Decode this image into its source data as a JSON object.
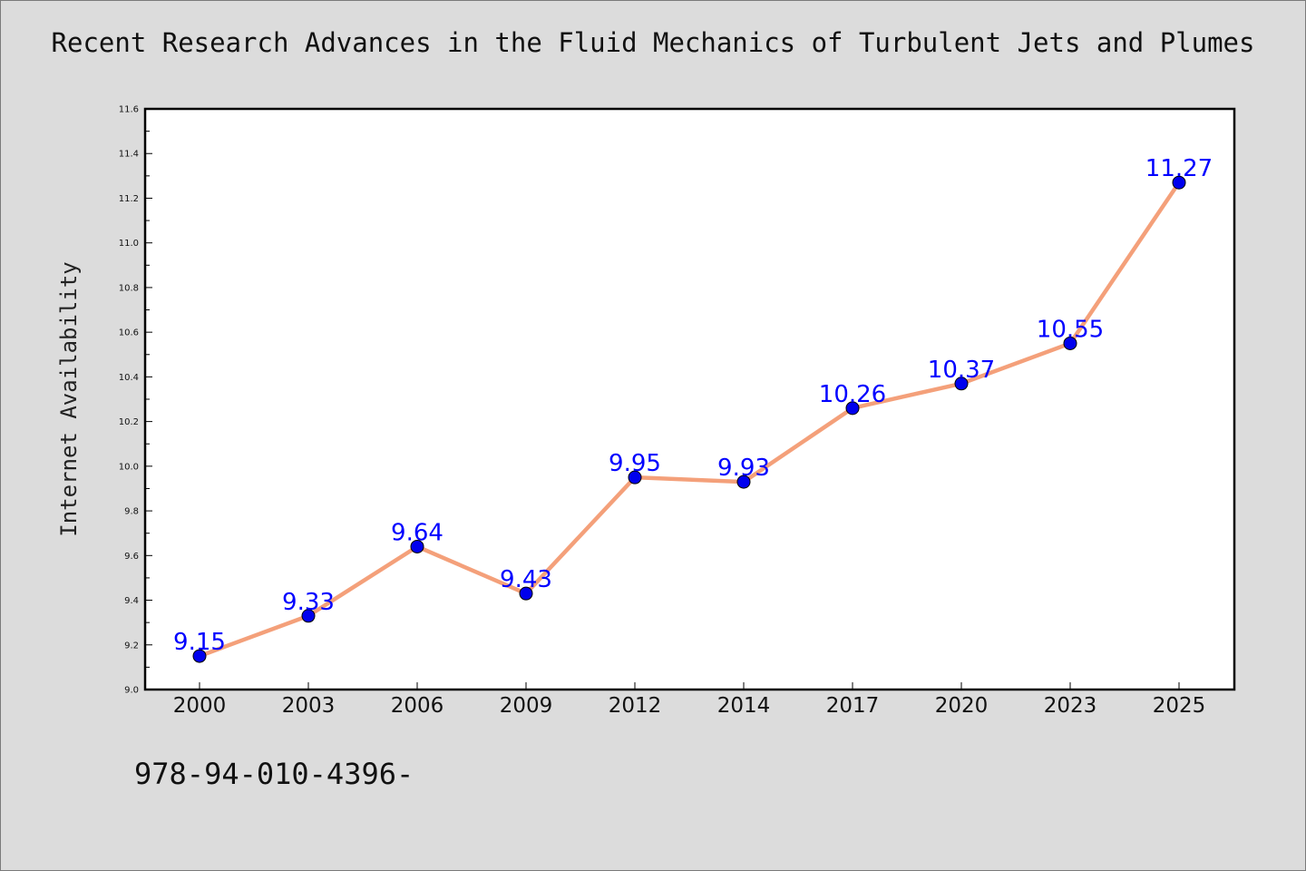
{
  "chart_data": {
    "type": "line",
    "title": "Recent Research Advances in the Fluid Mechanics of Turbulent Jets and Plumes",
    "ylabel": "Internet Availability",
    "xlabel": "",
    "categories": [
      "2000",
      "2003",
      "2006",
      "2009",
      "2012",
      "2014",
      "2017",
      "2020",
      "2023",
      "2025"
    ],
    "values": [
      9.15,
      9.33,
      9.64,
      9.43,
      9.95,
      9.93,
      10.26,
      10.37,
      10.55,
      11.27
    ],
    "data_labels": [
      "9.15",
      "9.33",
      "9.64",
      "9.43",
      "9.95",
      "9.93",
      "10.26",
      "10.37",
      "10.55",
      "11.27"
    ],
    "ylim": [
      9.0,
      11.6
    ],
    "yticks": [
      "9.0",
      "9.2",
      "9.4",
      "9.6",
      "9.8",
      "10.0",
      "10.2",
      "10.4",
      "10.6",
      "10.8",
      "11.0",
      "11.2",
      "11.4",
      "11.6"
    ],
    "grid": false,
    "colors": {
      "line": "#f4a07a",
      "marker": "#0000ee",
      "label": "#0000ff",
      "plot_bg": "#ffffff",
      "page_bg": "#dcdcdc"
    }
  },
  "footnote": "978-94-010-4396-"
}
